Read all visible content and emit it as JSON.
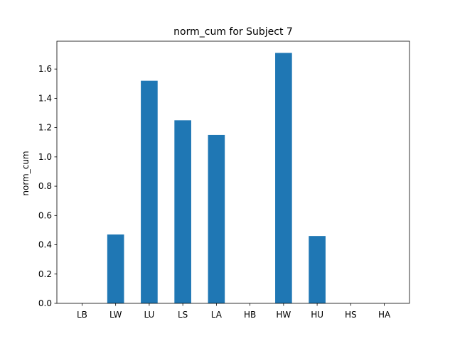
{
  "chart_data": {
    "type": "bar",
    "title": "norm_cum for Subject 7",
    "xlabel": "",
    "ylabel": "norm_cum",
    "categories": [
      "LB",
      "LW",
      "LU",
      "LS",
      "LA",
      "HB",
      "HW",
      "HU",
      "HS",
      "HA"
    ],
    "values": [
      0,
      0.47,
      1.52,
      1.25,
      1.15,
      0,
      1.71,
      0.46,
      0,
      0
    ],
    "ylim": [
      0,
      1.79
    ],
    "yticks": [
      0.0,
      0.2,
      0.4,
      0.6,
      0.8,
      1.0,
      1.2,
      1.4,
      1.6
    ],
    "ytick_labels": [
      "0.0",
      "0.2",
      "0.4",
      "0.6",
      "0.8",
      "1.0",
      "1.2",
      "1.4",
      "1.6"
    ],
    "grid": false,
    "bar_color": "#1f77b4"
  }
}
